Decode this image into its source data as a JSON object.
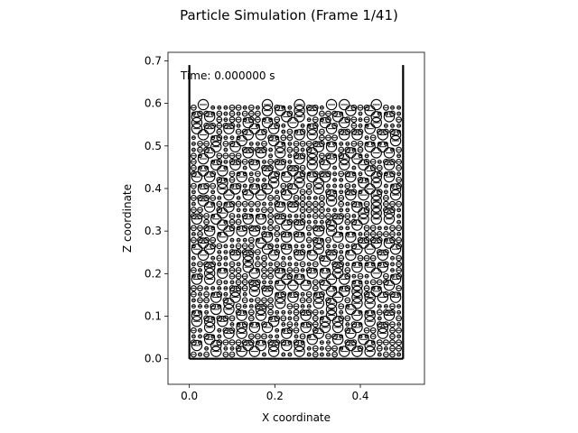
{
  "chart_data": {
    "type": "scatter",
    "title": "Particle Simulation (Frame 1/41)",
    "xlabel": "X coordinate",
    "ylabel": "Z coordinate",
    "xlim": [
      -0.05,
      0.55
    ],
    "ylim": [
      -0.06,
      0.72
    ],
    "xticks": [
      0.0,
      0.2,
      0.4
    ],
    "xtick_labels": [
      "0.0",
      "0.2",
      "0.4"
    ],
    "yticks": [
      0.0,
      0.1,
      0.2,
      0.3,
      0.4,
      0.5,
      0.6,
      0.7
    ],
    "ytick_labels": [
      "0.0",
      "0.1",
      "0.2",
      "0.3",
      "0.4",
      "0.5",
      "0.6",
      "0.7"
    ],
    "grid": false,
    "legend": "none",
    "annotation": "Time: 0.000000 s",
    "container": {
      "x_left": 0.0,
      "x_right": 0.5,
      "z_bottom": 0.0,
      "z_top": 0.69
    },
    "particles": {
      "x_min": 0.01,
      "x_max": 0.49,
      "z_min": 0.01,
      "z_max": 0.59,
      "columns": 33,
      "rows": 42,
      "radii": [
        0.004,
        0.006,
        0.012
      ],
      "marker": "circle with horizontal line",
      "color": "#000000"
    }
  },
  "colors": {
    "background": "#ffffff",
    "ink": "#000000"
  }
}
